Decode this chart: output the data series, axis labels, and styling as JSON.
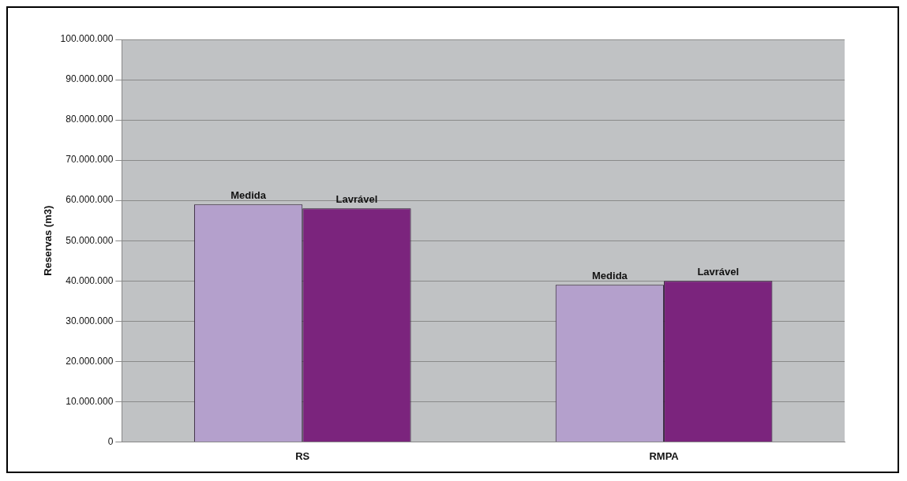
{
  "chart_data": {
    "type": "bar",
    "ylabel": "Reservas (m3)",
    "categories": [
      "RS",
      "RMPA"
    ],
    "series": [
      {
        "name": "Medida",
        "color": "#b4a0cc",
        "values": [
          59000000,
          39000000
        ]
      },
      {
        "name": "Lavrável",
        "color": "#7b247d",
        "values": [
          58000000,
          40000000
        ]
      }
    ],
    "ylim": [
      0,
      100000000
    ],
    "yticks": [
      0,
      {
        "value": 10000000,
        "label": "10.000.000"
      },
      {
        "value": 20000000,
        "label": "20.000.000"
      },
      {
        "value": 30000000,
        "label": "30.000.000"
      },
      {
        "value": 40000000,
        "label": "40.000.000"
      },
      {
        "value": 50000000,
        "label": "50.000.000"
      },
      {
        "value": 60000000,
        "label": "60.000.000"
      },
      {
        "value": 70000000,
        "label": "70.000.000"
      },
      {
        "value": 80000000,
        "label": "80.000.000"
      },
      {
        "value": 90000000,
        "label": "90.000.000"
      },
      {
        "value": 100000000,
        "label": "100.000.000"
      }
    ],
    "grid": "y",
    "legend": false
  }
}
